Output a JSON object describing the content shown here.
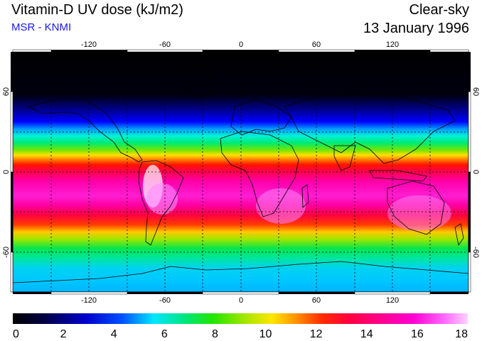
{
  "header": {
    "title": "Vitamin-D UV dose (kJ/m2)",
    "credit": "MSR - KNMI",
    "condition": "Clear-sky",
    "date": "13 January 1996"
  },
  "map": {
    "projection": "equirectangular",
    "lon_range": [
      -180,
      180
    ],
    "lat_range": [
      -90,
      90
    ],
    "grid_lon_step": 30,
    "grid_lat_step": 30,
    "lon_labels": [
      -120,
      -60,
      0,
      60,
      120
    ],
    "lat_labels": [
      60,
      0,
      -60
    ],
    "field": "vitamin-D clear-sky UV dose, strongest in southern summer hemisphere"
  },
  "colorbar": {
    "min": 0,
    "max": 18,
    "tick_labels": [
      "0",
      "2",
      "4",
      "6",
      "8",
      "10",
      "12",
      "14",
      "16",
      "18"
    ],
    "colors": [
      "#000000",
      "#000044",
      "#0000cc",
      "#0050ff",
      "#00e6ff",
      "#00e67a",
      "#22e600",
      "#b4e600",
      "#ffe600",
      "#ff9600",
      "#ff2a00",
      "#ff0040",
      "#ff0090",
      "#ff00d2",
      "#ff6aff",
      "#ffd2ff"
    ]
  }
}
